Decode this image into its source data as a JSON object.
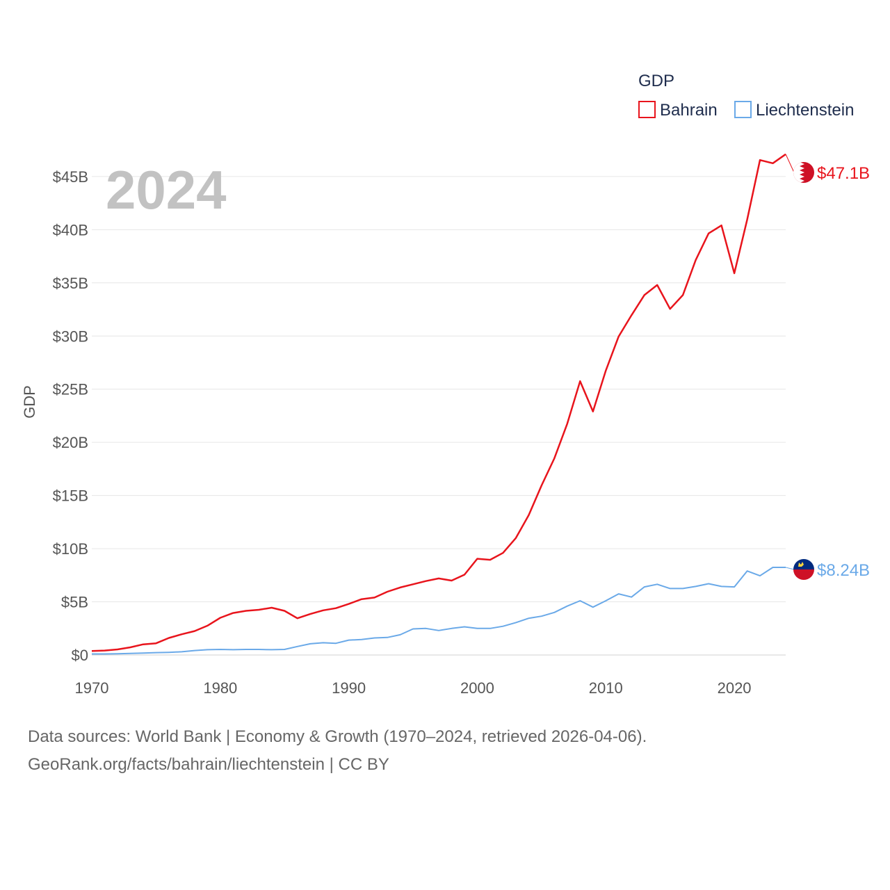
{
  "chart_data": {
    "type": "line",
    "title": "",
    "watermark_year": "2024",
    "ylabel": "GDP",
    "xlabel": "",
    "xlim": [
      1970,
      2024
    ],
    "ylim": [
      0,
      48
    ],
    "x_ticks": [
      "1970",
      "1980",
      "1990",
      "2000",
      "2010",
      "2020"
    ],
    "y_ticks": [
      {
        "value": 0,
        "label": "$0"
      },
      {
        "value": 5,
        "label": "$5B"
      },
      {
        "value": 10,
        "label": "$10B"
      },
      {
        "value": 15,
        "label": "$15B"
      },
      {
        "value": 20,
        "label": "$20B"
      },
      {
        "value": 25,
        "label": "$25B"
      },
      {
        "value": 30,
        "label": "$30B"
      },
      {
        "value": 35,
        "label": "$35B"
      },
      {
        "value": 40,
        "label": "$40B"
      },
      {
        "value": 45,
        "label": "$45B"
      }
    ],
    "legend_title": "GDP",
    "legend_position": "top-right",
    "x": [
      1970,
      1971,
      1972,
      1973,
      1974,
      1975,
      1976,
      1977,
      1978,
      1979,
      1980,
      1981,
      1982,
      1983,
      1984,
      1985,
      1986,
      1987,
      1988,
      1989,
      1990,
      1991,
      1992,
      1993,
      1994,
      1995,
      1996,
      1997,
      1998,
      1999,
      2000,
      2001,
      2002,
      2003,
      2004,
      2005,
      2006,
      2007,
      2008,
      2009,
      2010,
      2011,
      2012,
      2013,
      2014,
      2015,
      2016,
      2017,
      2018,
      2019,
      2020,
      2021,
      2022,
      2023,
      2024
    ],
    "series": [
      {
        "name": "Bahrain",
        "color": "#e8141c",
        "end_label": "$47.1B",
        "flag": "bahrain-flag",
        "values": [
          0.38,
          0.42,
          0.52,
          0.72,
          1.0,
          1.1,
          1.6,
          1.95,
          2.25,
          2.75,
          3.5,
          3.95,
          4.15,
          4.25,
          4.45,
          4.15,
          3.45,
          3.85,
          4.2,
          4.4,
          4.8,
          5.25,
          5.4,
          5.95,
          6.35,
          6.65,
          6.95,
          7.2,
          7.0,
          7.55,
          9.05,
          8.95,
          9.6,
          11.0,
          13.15,
          15.95,
          18.5,
          21.75,
          25.75,
          22.9,
          26.75,
          29.95,
          31.95,
          33.85,
          34.8,
          32.55,
          33.85,
          37.15,
          39.65,
          40.4,
          35.9,
          40.95,
          46.55,
          46.25,
          47.1
        ]
      },
      {
        "name": "Liechtenstein",
        "color": "#6aa9e8",
        "end_label": "$8.24B",
        "flag": "liechtenstein-flag",
        "values": [
          0.1,
          0.1,
          0.12,
          0.15,
          0.18,
          0.22,
          0.25,
          0.3,
          0.42,
          0.5,
          0.52,
          0.5,
          0.52,
          0.52,
          0.5,
          0.52,
          0.8,
          1.05,
          1.15,
          1.1,
          1.4,
          1.45,
          1.6,
          1.65,
          1.9,
          2.45,
          2.5,
          2.3,
          2.5,
          2.65,
          2.5,
          2.5,
          2.7,
          3.05,
          3.45,
          3.65,
          4.0,
          4.6,
          5.1,
          4.5,
          5.1,
          5.75,
          5.45,
          6.4,
          6.65,
          6.25,
          6.25,
          6.45,
          6.7,
          6.45,
          6.4,
          7.9,
          7.45,
          8.24,
          8.24
        ]
      }
    ]
  },
  "footer": {
    "line1": "Data sources: World Bank | Economy & Growth (1970–2024, retrieved 2026-04-06).",
    "line2": "GeoRank.org/facts/bahrain/liechtenstein | CC BY"
  }
}
